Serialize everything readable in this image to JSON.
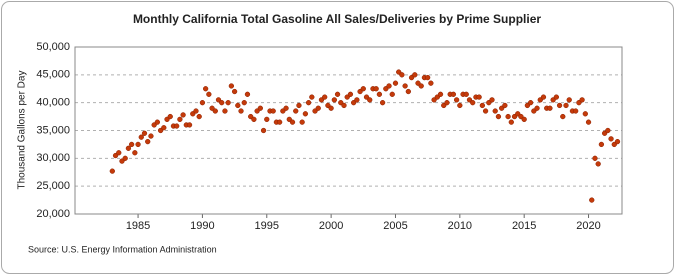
{
  "chart_data": {
    "type": "scatter",
    "title": "Monthly California Total Gasoline All Sales/Deliveries by Prime Supplier",
    "y_label": "Thousand Gallons per Day",
    "source": "Source: U.S. Energy Information Administration",
    "color": "#c43a0a",
    "grid": true,
    "xlim": [
      1980.1,
      2022.6
    ],
    "xticks": [
      1985,
      1990,
      1995,
      2000,
      2005,
      2010,
      2015,
      2020
    ],
    "ylim": [
      20000,
      50000
    ],
    "yticks": [
      {
        "value": 20000,
        "label": "20,000"
      },
      {
        "value": 25000,
        "label": "25,000"
      },
      {
        "value": 30000,
        "label": "30,000"
      },
      {
        "value": 35000,
        "label": "35,000"
      },
      {
        "value": 40000,
        "label": "40,000"
      },
      {
        "value": 45000,
        "label": "45,000"
      },
      {
        "value": 50000,
        "label": "50,000"
      }
    ],
    "x": [
      1983,
      1983.25,
      1983.5,
      1983.75,
      1984,
      1984.25,
      1984.5,
      1984.75,
      1985,
      1985.25,
      1985.5,
      1985.75,
      1986,
      1986.25,
      1986.5,
      1986.75,
      1987,
      1987.25,
      1987.5,
      1987.75,
      1988,
      1988.25,
      1988.5,
      1988.75,
      1989,
      1989.25,
      1989.5,
      1989.75,
      1990,
      1990.25,
      1990.5,
      1990.75,
      1991,
      1991.25,
      1991.5,
      1991.75,
      1992,
      1992.25,
      1992.5,
      1992.75,
      1993,
      1993.25,
      1993.5,
      1993.75,
      1994,
      1994.25,
      1994.5,
      1994.75,
      1995,
      1995.25,
      1995.5,
      1995.75,
      1996,
      1996.25,
      1996.5,
      1996.75,
      1997,
      1997.25,
      1997.5,
      1997.75,
      1998,
      1998.25,
      1998.5,
      1998.75,
      1999,
      1999.25,
      1999.5,
      1999.75,
      2000,
      2000.25,
      2000.5,
      2000.75,
      2001,
      2001.25,
      2001.5,
      2001.75,
      2002,
      2002.25,
      2002.5,
      2002.75,
      2003,
      2003.25,
      2003.5,
      2003.75,
      2004,
      2004.25,
      2004.5,
      2004.75,
      2005,
      2005.25,
      2005.5,
      2005.75,
      2006,
      2006.25,
      2006.5,
      2006.75,
      2007,
      2007.25,
      2007.5,
      2007.75,
      2008,
      2008.25,
      2008.5,
      2008.75,
      2009,
      2009.25,
      2009.5,
      2009.75,
      2010,
      2010.25,
      2010.5,
      2010.75,
      2011,
      2011.25,
      2011.5,
      2011.75,
      2012,
      2012.25,
      2012.5,
      2012.75,
      2013,
      2013.25,
      2013.5,
      2013.75,
      2014,
      2014.25,
      2014.5,
      2014.75,
      2015,
      2015.25,
      2015.5,
      2015.75,
      2016,
      2016.25,
      2016.5,
      2016.75,
      2017,
      2017.25,
      2017.5,
      2017.75,
      2018,
      2018.25,
      2018.5,
      2018.75,
      2019,
      2019.25,
      2019.5,
      2019.75,
      2020,
      2020.25,
      2020.5,
      2020.75,
      2021,
      2021.25,
      2021.5,
      2021.75,
      2022,
      2022.25
    ],
    "values": [
      27700,
      30500,
      31000,
      29500,
      30000,
      31800,
      32500,
      31000,
      32500,
      33800,
      34500,
      33000,
      34000,
      36000,
      36500,
      35000,
      35500,
      37000,
      37500,
      35800,
      35800,
      37000,
      37800,
      36000,
      36000,
      38000,
      38500,
      37500,
      40000,
      42500,
      41500,
      39000,
      38500,
      40500,
      40000,
      38500,
      40000,
      43000,
      42000,
      39500,
      38500,
      40000,
      41500,
      37500,
      37000,
      38500,
      39000,
      35000,
      37000,
      38500,
      38500,
      36500,
      36500,
      38500,
      39000,
      37000,
      36500,
      38500,
      39500,
      36500,
      38000,
      40000,
      41000,
      38500,
      39000,
      40500,
      41000,
      39500,
      39000,
      40500,
      41500,
      40000,
      39500,
      41000,
      41500,
      40000,
      40500,
      42000,
      42500,
      41000,
      40500,
      42500,
      42500,
      41500,
      40000,
      42500,
      43000,
      41500,
      43500,
      45500,
      45000,
      43000,
      42000,
      44500,
      45000,
      43500,
      43000,
      44500,
      44500,
      43500,
      40500,
      41000,
      41500,
      39500,
      40000,
      41500,
      41500,
      40500,
      39500,
      41500,
      41500,
      40500,
      40000,
      41000,
      41000,
      39500,
      38500,
      40000,
      40500,
      38500,
      37500,
      39000,
      39500,
      37500,
      36500,
      37500,
      38000,
      37500,
      37000,
      39500,
      40000,
      38500,
      39000,
      40500,
      41000,
      39000,
      39000,
      40500,
      41000,
      39500,
      37500,
      39500,
      40500,
      38500,
      38500,
      40000,
      40500,
      38000,
      36500,
      22500,
      30000,
      29000,
      32500,
      34500,
      35000,
      33500,
      32500,
      33000
    ]
  }
}
